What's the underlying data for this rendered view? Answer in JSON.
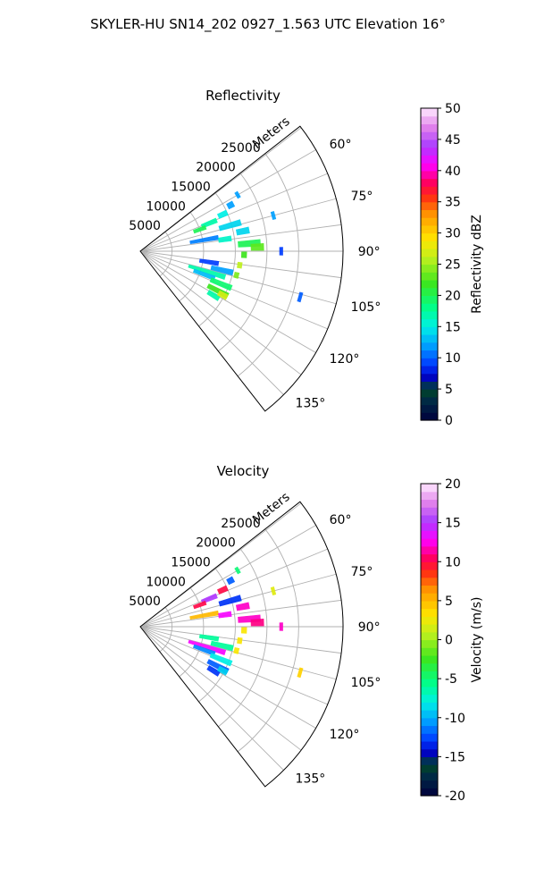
{
  "figure": {
    "title": "SKYLER-HU  SN14_202  0927_1.563 UTC Elevation 16°"
  },
  "chart_data": [
    {
      "type": "polar-sector",
      "title": "Reflectivity",
      "range_label": "Meters",
      "range_ticks": [
        5000,
        10000,
        15000,
        20000,
        25000
      ],
      "range_max": 32000,
      "azimuth_range": [
        52,
        142
      ],
      "azimuth_ticks": [
        "60°",
        "75°",
        "90°",
        "105°",
        "120°",
        "135°"
      ],
      "azimuth_tick_values": [
        60,
        75,
        90,
        105,
        120,
        135
      ],
      "grid": true,
      "colorbar": {
        "label": "Reflectivity dBZ",
        "min": 0,
        "max": 50,
        "ticks": [
          "0",
          "5",
          "10",
          "15",
          "20",
          "25",
          "30",
          "35",
          "40",
          "45",
          "50"
        ]
      },
      "echoes": [
        {
          "az": 68,
          "r": [
            10500,
            13000
          ],
          "value": 17
        },
        {
          "az": 70,
          "r": [
            9000,
            11000
          ],
          "value": 20
        },
        {
          "az": 66,
          "r": [
            13500,
            15000
          ],
          "value": 15
        },
        {
          "az": 63,
          "r": [
            15500,
            16500
          ],
          "value": 12
        },
        {
          "az": 74,
          "r": [
            13000,
            16500
          ],
          "value": 14
        },
        {
          "az": 80,
          "r": [
            8000,
            12500
          ],
          "value": 11
        },
        {
          "az": 82,
          "r": [
            12500,
            14500
          ],
          "value": 16
        },
        {
          "az": 79,
          "r": [
            15500,
            17500
          ],
          "value": 14
        },
        {
          "az": 86,
          "r": [
            15500,
            19000
          ],
          "value": 20
        },
        {
          "az": 88,
          "r": [
            17500,
            19500
          ],
          "value": 23
        },
        {
          "az": 92,
          "r": [
            16000,
            16800
          ],
          "value": 22
        },
        {
          "az": 98,
          "r": [
            15500,
            16200
          ],
          "value": 26
        },
        {
          "az": 104,
          "r": [
            15300,
            16000
          ],
          "value": 24
        },
        {
          "az": 99,
          "r": [
            9500,
            12500
          ],
          "value": 9
        },
        {
          "az": 103,
          "r": [
            11500,
            15000
          ],
          "value": 12
        },
        {
          "az": 107,
          "r": [
            8000,
            14000
          ],
          "value": 17
        },
        {
          "az": 110,
          "r": [
            9000,
            12500
          ],
          "value": 13
        },
        {
          "az": 112,
          "r": [
            12000,
            15500
          ],
          "value": 19
        },
        {
          "az": 117,
          "r": [
            12000,
            15500
          ],
          "value": 22
        },
        {
          "az": 121,
          "r": [
            12500,
            14500
          ],
          "value": 17
        },
        {
          "az": 118,
          "r": [
            14000,
            15500
          ],
          "value": 27
        },
        {
          "az": 75,
          "r": [
            21500,
            22000
          ],
          "value": 12
        },
        {
          "az": 60,
          "r": [
            17500,
            18000
          ],
          "value": 12
        },
        {
          "az": 106,
          "r": [
            26000,
            26500
          ],
          "value": 10
        },
        {
          "az": 90,
          "r": [
            22000,
            22500
          ],
          "value": 9
        }
      ]
    },
    {
      "type": "polar-sector",
      "title": "Velocity",
      "range_label": "Meters",
      "range_ticks": [
        5000,
        10000,
        15000,
        20000,
        25000
      ],
      "range_max": 32000,
      "azimuth_range": [
        52,
        142
      ],
      "azimuth_ticks": [
        "60°",
        "75°",
        "90°",
        "105°",
        "120°",
        "135°"
      ],
      "azimuth_tick_values": [
        60,
        75,
        90,
        105,
        120,
        135
      ],
      "grid": true,
      "colorbar": {
        "label": "Velocity (m/s)",
        "min": -20,
        "max": 20,
        "ticks": [
          "-20",
          "-15",
          "-10",
          "-5",
          "0",
          "5",
          "10",
          "15",
          "20"
        ]
      },
      "echoes": [
        {
          "az": 68,
          "r": [
            10500,
            13000
          ],
          "value": 15
        },
        {
          "az": 70,
          "r": [
            9000,
            11000
          ],
          "value": 10
        },
        {
          "az": 66,
          "r": [
            13500,
            15000
          ],
          "value": 10
        },
        {
          "az": 63,
          "r": [
            15500,
            16500
          ],
          "value": -12
        },
        {
          "az": 74,
          "r": [
            13000,
            16500
          ],
          "value": -13
        },
        {
          "az": 80,
          "r": [
            8000,
            12500
          ],
          "value": 5
        },
        {
          "az": 82,
          "r": [
            12500,
            14500
          ],
          "value": 13
        },
        {
          "az": 79,
          "r": [
            15500,
            17500
          ],
          "value": 12
        },
        {
          "az": 86,
          "r": [
            15500,
            19000
          ],
          "value": 12
        },
        {
          "az": 88,
          "r": [
            17500,
            19500
          ],
          "value": 11
        },
        {
          "az": 92,
          "r": [
            16000,
            16800
          ],
          "value": 3
        },
        {
          "az": 98,
          "r": [
            15500,
            16200
          ],
          "value": 3
        },
        {
          "az": 104,
          "r": [
            15300,
            16000
          ],
          "value": 3
        },
        {
          "az": 99,
          "r": [
            9500,
            12500
          ],
          "value": -6
        },
        {
          "az": 103,
          "r": [
            11500,
            15000
          ],
          "value": -6
        },
        {
          "az": 107,
          "r": [
            8000,
            14000
          ],
          "value": 13
        },
        {
          "az": 110,
          "r": [
            9000,
            12500
          ],
          "value": -11
        },
        {
          "az": 112,
          "r": [
            12000,
            15500
          ],
          "value": -8
        },
        {
          "az": 117,
          "r": [
            12000,
            15500
          ],
          "value": -12
        },
        {
          "az": 121,
          "r": [
            12500,
            14500
          ],
          "value": -13
        },
        {
          "az": 118,
          "r": [
            14000,
            15500
          ],
          "value": -9
        },
        {
          "az": 75,
          "r": [
            21500,
            22000
          ],
          "value": 2
        },
        {
          "az": 60,
          "r": [
            17500,
            18000
          ],
          "value": -5
        },
        {
          "az": 106,
          "r": [
            26000,
            26500
          ],
          "value": 4
        },
        {
          "az": 90,
          "r": [
            22000,
            22500
          ],
          "value": 12
        }
      ]
    }
  ]
}
